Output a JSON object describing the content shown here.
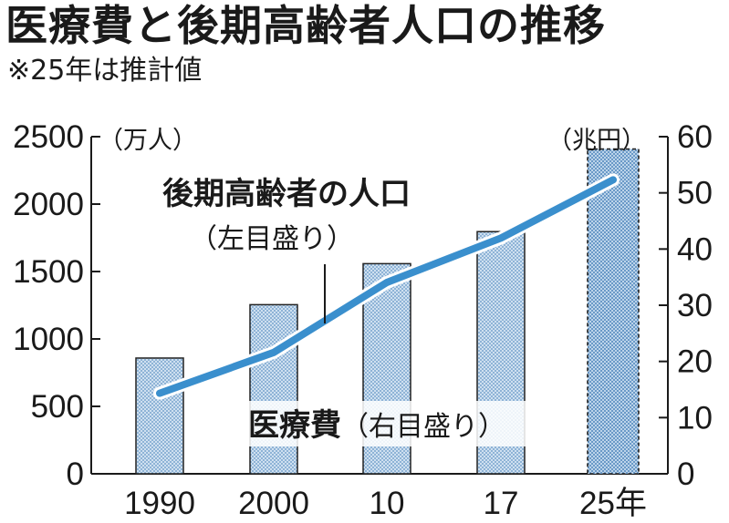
{
  "title": "医療費と後期高齢者人口の推移",
  "subtitle": "※25年は推計値",
  "chart_data": {
    "type": "bar",
    "categories": [
      "1990",
      "2000",
      "10",
      "17",
      "25年"
    ],
    "left_axis": {
      "unit": "（万人）",
      "ticks": [
        "0",
        "500",
        "1000",
        "1500",
        "2000",
        "2500"
      ],
      "range": [
        0,
        2500
      ]
    },
    "right_axis": {
      "unit": "（兆円）",
      "ticks": [
        "0",
        "10",
        "20",
        "30",
        "40",
        "50",
        "60"
      ],
      "range": [
        0,
        60
      ]
    },
    "series": [
      {
        "kind": "bar",
        "axis": "right",
        "label": "医療費",
        "label_suffix": "（右目盛り）",
        "values": [
          20.6,
          30.1,
          37.4,
          43.1,
          57.8
        ],
        "estimated_last": true
      },
      {
        "kind": "line",
        "axis": "left",
        "label": "後期高齢者の人口",
        "label_suffix": "（左目盛り）",
        "values": [
          597,
          900,
          1419,
          1748,
          2180
        ]
      }
    ],
    "colors": {
      "bar_fill": "#c9dcee",
      "bar_dot": "#5f93c4",
      "line": "#3a8fcd",
      "estimate_fill": "#b7d1ea"
    },
    "grid": false
  }
}
